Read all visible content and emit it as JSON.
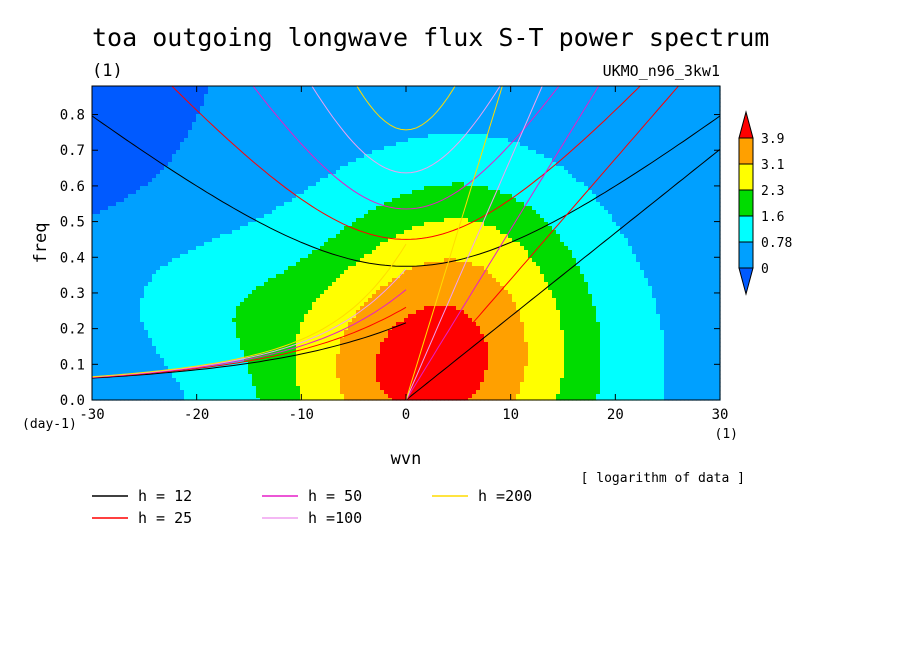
{
  "chart_data": {
    "type": "heatmap",
    "title": "toa outgoing longwave flux S-T power spectrum",
    "title_units": "(1)",
    "model_label": "UKMO_n96_3kw1",
    "xlabel": "wvn",
    "ylabel": "freq",
    "x_units": "(1)",
    "y_units": "(day-1)",
    "xlim": [
      -30,
      30
    ],
    "ylim": [
      0,
      0.88
    ],
    "xticks": [
      -30,
      -20,
      -10,
      0,
      10,
      20,
      30
    ],
    "xtick_labels": [
      "-30",
      "-20",
      "-10",
      "0",
      "10",
      "20",
      "30"
    ],
    "yticks": [
      0,
      0.1,
      0.2,
      0.3,
      0.4,
      0.5,
      0.6,
      0.7,
      0.8
    ],
    "ytick_labels": [
      "0.0",
      "0.1",
      "0.2",
      "0.3",
      "0.4",
      "0.5",
      "0.6",
      "0.7",
      "0.8"
    ],
    "note": "[ logarithm of data ]",
    "colorbar": {
      "labels": [
        "0",
        "0.78",
        "1.6",
        "2.3",
        "3.1",
        "3.9"
      ],
      "levels": [
        0,
        0.78,
        1.6,
        2.3,
        3.1,
        3.9
      ],
      "colors": [
        "#005aff",
        "#00a0ff",
        "#00ffff",
        "#00dc00",
        "#ffff00",
        "#ffa000",
        "#ff0000"
      ]
    },
    "field": {
      "peak": {
        "x": 2,
        "y": 0.07,
        "value": 4.3
      },
      "low_region": {
        "x": -30,
        "y": 0.85
      }
    },
    "series": [
      {
        "name": "h = 12",
        "h": 12,
        "color": "#000000"
      },
      {
        "name": "h = 25",
        "h": 25,
        "color": "#ff0000"
      },
      {
        "name": "h = 50",
        "h": 50,
        "color": "#e61ec8"
      },
      {
        "name": "h =100",
        "h": 100,
        "color": "#f0a0f0"
      },
      {
        "name": "h =200",
        "h": 200,
        "color": "#ffdc00"
      }
    ]
  }
}
